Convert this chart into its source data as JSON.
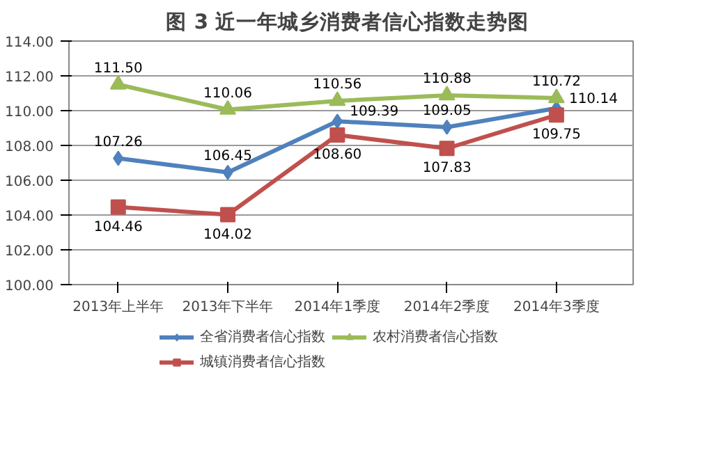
{
  "chart_data": {
    "type": "line",
    "title": "图 3  近一年城乡消费者信心指数走势图",
    "categories": [
      "2013年上半年",
      "2013年下半年",
      "2014年1季度",
      "2014年2季度",
      "2014年3季度"
    ],
    "series": [
      {
        "name": "全省消费者信心指数",
        "color": "#4f81bd",
        "marker": "diamond",
        "values": [
          107.26,
          106.45,
          109.39,
          109.05,
          110.14
        ],
        "value_labels": [
          "107.26",
          "106.45",
          "109.39",
          "109.05",
          "110.14"
        ]
      },
      {
        "name": "城镇消费者信心指数",
        "color": "#c0504d",
        "marker": "square",
        "values": [
          104.46,
          104.02,
          108.6,
          107.83,
          109.75
        ],
        "value_labels": [
          "104.46",
          "104.02",
          "108.60",
          "107.83",
          "109.75"
        ]
      },
      {
        "name": "农村消费者信心指数",
        "color": "#9bbb59",
        "marker": "triangle",
        "values": [
          111.5,
          110.06,
          110.56,
          110.88,
          110.72
        ],
        "value_labels": [
          "111.50",
          "110.06",
          "110.56",
          "110.88",
          "110.72"
        ]
      }
    ],
    "ylim": [
      100,
      114
    ],
    "yticks": [
      {
        "value": 100,
        "label": "100.00"
      },
      {
        "value": 102,
        "label": "102.00"
      },
      {
        "value": 104,
        "label": "104.00"
      },
      {
        "value": 106,
        "label": "106.00"
      },
      {
        "value": 108,
        "label": "108.00"
      },
      {
        "value": 110,
        "label": "110.00"
      },
      {
        "value": 112,
        "label": "112.00"
      },
      {
        "value": 114,
        "label": "114.00"
      }
    ],
    "grid": "y",
    "legend": "bottom",
    "line_style": "solid"
  }
}
